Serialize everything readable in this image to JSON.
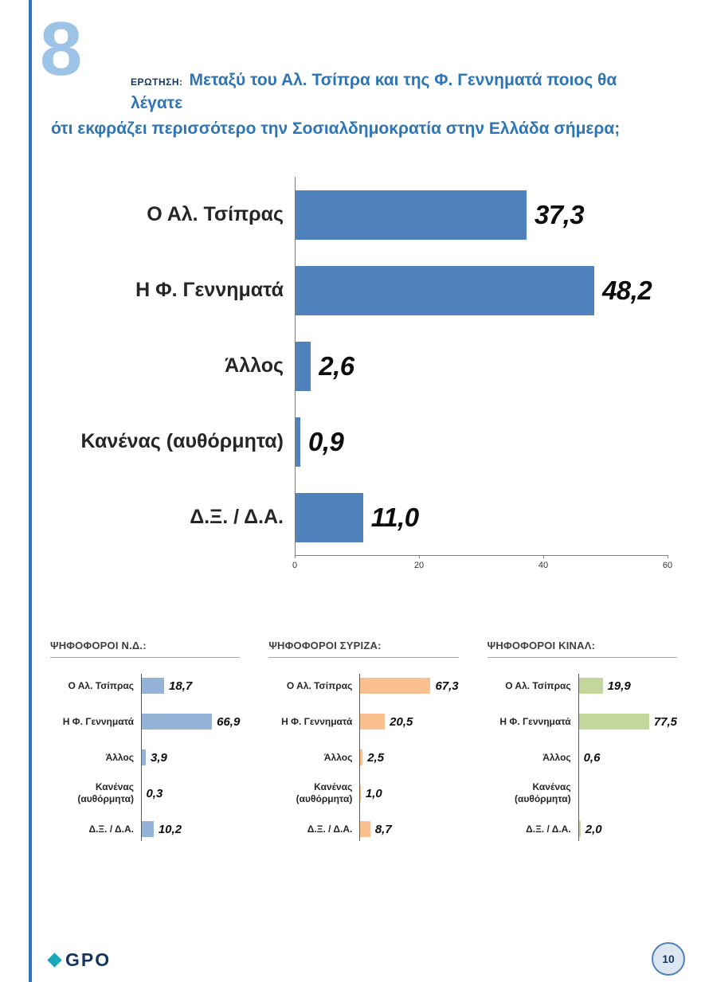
{
  "page": {
    "big_number": "8",
    "question_label": "ΕΡΩΤΗΣΗ:",
    "question_line1": "Μεταξύ του Αλ. Τσίπρα και της Φ. Γεννηματά ποιος θα λέγατε",
    "question_line2": "ότι εκφράζει περισσότερο την Σοσιαλδημοκρατία στην Ελλάδα σήμερα;",
    "page_number": "10",
    "logo": "GPO"
  },
  "colors": {
    "accent_blue": "#2e75b6",
    "main_bar": "#4f81bd",
    "nd_bar": "#95b3d7",
    "syriza_bar": "#fac090",
    "kinal_bar": "#c3d69b"
  },
  "chart_data": [
    {
      "id": "main",
      "type": "bar",
      "orientation": "horizontal",
      "title": "",
      "categories": [
        "Ο Αλ. Τσίπρας",
        "Η Φ. Γεννηματά",
        "Άλλος",
        "Κανένας (αυθόρμητα)",
        "Δ.Ξ. / Δ.Α."
      ],
      "values": [
        37.3,
        48.2,
        2.6,
        0.9,
        11.0
      ],
      "labels": [
        "37,3",
        "48,2",
        "2,6",
        "0,9",
        "11,0"
      ],
      "xlim": [
        0,
        60
      ],
      "ticks": [
        "0",
        "20",
        "40",
        "60"
      ],
      "grid": false,
      "legend": false,
      "bar_color": "#4f81bd"
    },
    {
      "id": "nd-voters",
      "type": "bar",
      "orientation": "horizontal",
      "title": "ΨΗΦΟΦΟΡΟΙ Ν.Δ.:",
      "categories": [
        "Ο Αλ. Τσίπρας",
        "Η Φ. Γεννηματά",
        "Άλλος",
        "Κανένας (αυθόρμητα)",
        "Δ.Ξ. / Δ.Α."
      ],
      "values": [
        18.7,
        66.9,
        3.9,
        0.3,
        10.2
      ],
      "labels": [
        "18,7",
        "66,9",
        "3,9",
        "0,3",
        "10,2"
      ],
      "xlim": [
        0,
        80
      ],
      "grid": false,
      "legend": false,
      "bar_color": "#95b3d7"
    },
    {
      "id": "syriza-voters",
      "type": "bar",
      "orientation": "horizontal",
      "title": "ΨΗΦΟΦΟΡΟΙ ΣΥΡΙΖΑ:",
      "categories": [
        "Ο Αλ. Τσίπρας",
        "Η Φ. Γεννηματά",
        "Άλλος",
        "Κανένας (αυθόρμητα)",
        "Δ.Ξ. / Δ.Α."
      ],
      "values": [
        67.3,
        20.5,
        2.5,
        1.0,
        8.7
      ],
      "labels": [
        "67,3",
        "20,5",
        "2,5",
        "1,0",
        "8,7"
      ],
      "xlim": [
        0,
        80
      ],
      "grid": false,
      "legend": false,
      "bar_color": "#fac090"
    },
    {
      "id": "kinal-voters",
      "type": "bar",
      "orientation": "horizontal",
      "title": "ΨΗΦΟΦΟΡΟΙ ΚΙΝΑΛ:",
      "categories": [
        "Ο Αλ. Τσίπρας",
        "Η Φ. Γεννηματά",
        "Άλλος",
        "Κανένας (αυθόρμητα)",
        "Δ.Ξ. / Δ.Α."
      ],
      "values": [
        19.9,
        77.5,
        0.6,
        0,
        2.0
      ],
      "labels": [
        "19,9",
        "77,5",
        "0,6",
        "",
        "2,0"
      ],
      "xlim": [
        0,
        80
      ],
      "grid": false,
      "legend": false,
      "bar_color": "#c3d69b"
    }
  ]
}
